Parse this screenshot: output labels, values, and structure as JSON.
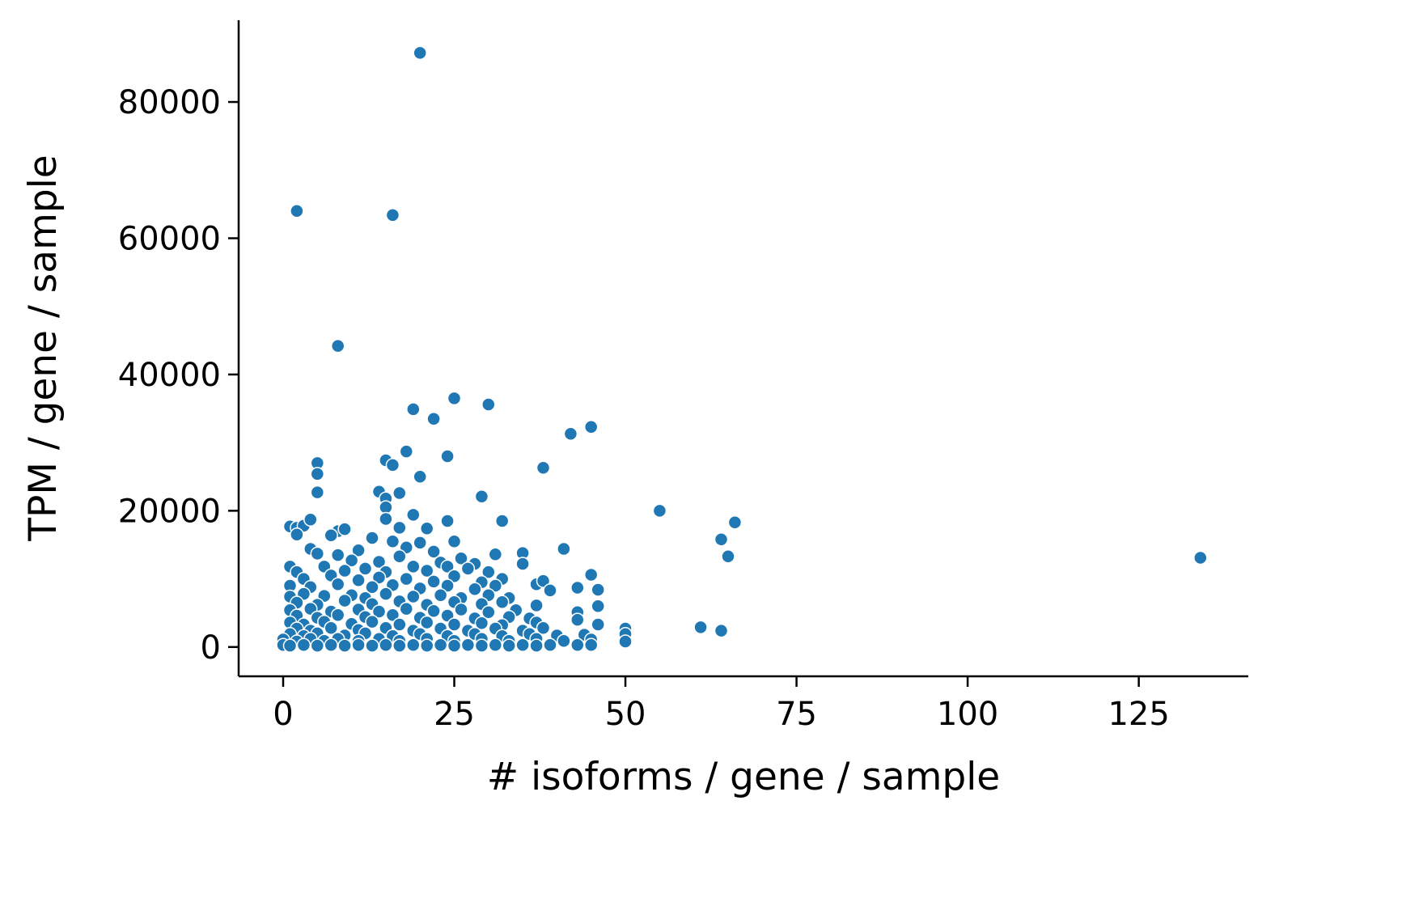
{
  "chart_data": {
    "type": "scatter",
    "title": "",
    "xlabel": "# isoforms / gene / sample",
    "ylabel": "TPM / gene / sample",
    "xlim": [
      -6.5,
      141
    ],
    "ylim": [
      -4300,
      92000
    ],
    "xticks": [
      0,
      25,
      50,
      75,
      100,
      125
    ],
    "yticks": [
      0,
      20000,
      40000,
      60000,
      80000
    ],
    "xtick_labels": [
      "0",
      "25",
      "50",
      "75",
      "100",
      "125"
    ],
    "ytick_labels": [
      "0",
      "20000",
      "40000",
      "60000",
      "80000"
    ],
    "grid": false,
    "legend": "none",
    "marker_color": "#1f77b4",
    "marker_edge_color": "#ffffff",
    "points": [
      [
        20,
        87200
      ],
      [
        2,
        64000
      ],
      [
        16,
        63400
      ],
      [
        8,
        44200
      ],
      [
        25,
        36500
      ],
      [
        30,
        35600
      ],
      [
        19,
        34900
      ],
      [
        22,
        33500
      ],
      [
        45,
        32300
      ],
      [
        42,
        31300
      ],
      [
        18,
        28700
      ],
      [
        24,
        28000
      ],
      [
        5,
        27000
      ],
      [
        15,
        27400
      ],
      [
        16,
        26700
      ],
      [
        38,
        26300
      ],
      [
        5,
        25400
      ],
      [
        20,
        25000
      ],
      [
        5,
        22700
      ],
      [
        14,
        22800
      ],
      [
        29,
        22100
      ],
      [
        15,
        21800
      ],
      [
        17,
        22600
      ],
      [
        15,
        20500
      ],
      [
        19,
        19400
      ],
      [
        55,
        20000
      ],
      [
        15,
        18800
      ],
      [
        24,
        18500
      ],
      [
        32,
        18500
      ],
      [
        66,
        18300
      ],
      [
        1,
        17700
      ],
      [
        2,
        17500
      ],
      [
        3,
        17800
      ],
      [
        4,
        18700
      ],
      [
        8,
        17000
      ],
      [
        9,
        17300
      ],
      [
        17,
        17500
      ],
      [
        21,
        17400
      ],
      [
        2,
        16500
      ],
      [
        7,
        16400
      ],
      [
        13,
        16000
      ],
      [
        16,
        15500
      ],
      [
        20,
        15300
      ],
      [
        25,
        15500
      ],
      [
        64,
        15800
      ],
      [
        4,
        14400
      ],
      [
        11,
        14200
      ],
      [
        18,
        14600
      ],
      [
        22,
        14000
      ],
      [
        31,
        13600
      ],
      [
        35,
        13800
      ],
      [
        41,
        14400
      ],
      [
        5,
        13700
      ],
      [
        8,
        13500
      ],
      [
        10,
        12700
      ],
      [
        14,
        12500
      ],
      [
        17,
        13300
      ],
      [
        23,
        12400
      ],
      [
        26,
        13000
      ],
      [
        28,
        12200
      ],
      [
        65,
        13300
      ],
      [
        134,
        13100
      ],
      [
        1,
        11800
      ],
      [
        2,
        11000
      ],
      [
        6,
        11800
      ],
      [
        9,
        11200
      ],
      [
        12,
        11500
      ],
      [
        15,
        11000
      ],
      [
        19,
        11800
      ],
      [
        21,
        11200
      ],
      [
        24,
        11800
      ],
      [
        27,
        11500
      ],
      [
        30,
        11000
      ],
      [
        35,
        12200
      ],
      [
        3,
        10000
      ],
      [
        7,
        10500
      ],
      [
        11,
        9800
      ],
      [
        14,
        10200
      ],
      [
        18,
        10000
      ],
      [
        22,
        9600
      ],
      [
        25,
        10400
      ],
      [
        29,
        9500
      ],
      [
        32,
        10000
      ],
      [
        45,
        10600
      ],
      [
        1,
        9000
      ],
      [
        4,
        8800
      ],
      [
        8,
        9200
      ],
      [
        13,
        8800
      ],
      [
        16,
        9100
      ],
      [
        20,
        8600
      ],
      [
        24,
        9000
      ],
      [
        28,
        8500
      ],
      [
        31,
        9000
      ],
      [
        37,
        9200
      ],
      [
        38,
        9700
      ],
      [
        43,
        8700
      ],
      [
        46,
        8400
      ],
      [
        1,
        7400
      ],
      [
        3,
        7800
      ],
      [
        6,
        7500
      ],
      [
        10,
        7600
      ],
      [
        12,
        7200
      ],
      [
        15,
        7800
      ],
      [
        19,
        7400
      ],
      [
        23,
        7600
      ],
      [
        26,
        7200
      ],
      [
        30,
        7600
      ],
      [
        33,
        7200
      ],
      [
        39,
        8300
      ],
      [
        2,
        6500
      ],
      [
        5,
        6200
      ],
      [
        9,
        6800
      ],
      [
        13,
        6300
      ],
      [
        17,
        6700
      ],
      [
        21,
        6200
      ],
      [
        25,
        6600
      ],
      [
        29,
        6300
      ],
      [
        32,
        6600
      ],
      [
        37,
        6100
      ],
      [
        46,
        6000
      ],
      [
        1,
        5400
      ],
      [
        4,
        5600
      ],
      [
        7,
        5200
      ],
      [
        11,
        5500
      ],
      [
        14,
        5200
      ],
      [
        18,
        5600
      ],
      [
        22,
        5300
      ],
      [
        26,
        5500
      ],
      [
        30,
        5100
      ],
      [
        34,
        5400
      ],
      [
        43,
        5100
      ],
      [
        2,
        4600
      ],
      [
        5,
        4300
      ],
      [
        8,
        4700
      ],
      [
        12,
        4400
      ],
      [
        16,
        4700
      ],
      [
        20,
        4300
      ],
      [
        24,
        4600
      ],
      [
        28,
        4200
      ],
      [
        33,
        4400
      ],
      [
        36,
        4200
      ],
      [
        43,
        4000
      ],
      [
        1,
        3600
      ],
      [
        3,
        3300
      ],
      [
        6,
        3700
      ],
      [
        10,
        3400
      ],
      [
        13,
        3700
      ],
      [
        17,
        3300
      ],
      [
        21,
        3600
      ],
      [
        25,
        3300
      ],
      [
        29,
        3500
      ],
      [
        32,
        3200
      ],
      [
        37,
        3600
      ],
      [
        46,
        3300
      ],
      [
        2,
        2700
      ],
      [
        4,
        2400
      ],
      [
        7,
        2800
      ],
      [
        11,
        2500
      ],
      [
        15,
        2800
      ],
      [
        19,
        2400
      ],
      [
        23,
        2700
      ],
      [
        27,
        2400
      ],
      [
        31,
        2700
      ],
      [
        35,
        2400
      ],
      [
        38,
        2800
      ],
      [
        50,
        2700
      ],
      [
        61,
        2900
      ],
      [
        64,
        2400
      ],
      [
        1,
        1900
      ],
      [
        3,
        1600
      ],
      [
        5,
        2000
      ],
      [
        9,
        1700
      ],
      [
        12,
        2000
      ],
      [
        16,
        1600
      ],
      [
        20,
        1900
      ],
      [
        24,
        1600
      ],
      [
        28,
        1900
      ],
      [
        32,
        1600
      ],
      [
        36,
        1900
      ],
      [
        40,
        1700
      ],
      [
        44,
        1800
      ],
      [
        50,
        1900
      ],
      [
        0,
        1100
      ],
      [
        2,
        800
      ],
      [
        4,
        1200
      ],
      [
        6,
        900
      ],
      [
        8,
        1200
      ],
      [
        11,
        900
      ],
      [
        14,
        1200
      ],
      [
        17,
        900
      ],
      [
        21,
        1200
      ],
      [
        25,
        900
      ],
      [
        29,
        1200
      ],
      [
        33,
        900
      ],
      [
        37,
        1200
      ],
      [
        41,
        900
      ],
      [
        45,
        1100
      ],
      [
        50,
        800
      ],
      [
        0,
        300
      ],
      [
        1,
        200
      ],
      [
        3,
        300
      ],
      [
        5,
        200
      ],
      [
        7,
        300
      ],
      [
        9,
        200
      ],
      [
        11,
        300
      ],
      [
        13,
        200
      ],
      [
        15,
        300
      ],
      [
        17,
        200
      ],
      [
        19,
        300
      ],
      [
        21,
        200
      ],
      [
        23,
        300
      ],
      [
        25,
        200
      ],
      [
        27,
        300
      ],
      [
        29,
        200
      ],
      [
        31,
        300
      ],
      [
        33,
        200
      ],
      [
        35,
        300
      ],
      [
        37,
        200
      ],
      [
        39,
        300
      ],
      [
        43,
        300
      ],
      [
        45,
        300
      ]
    ]
  }
}
